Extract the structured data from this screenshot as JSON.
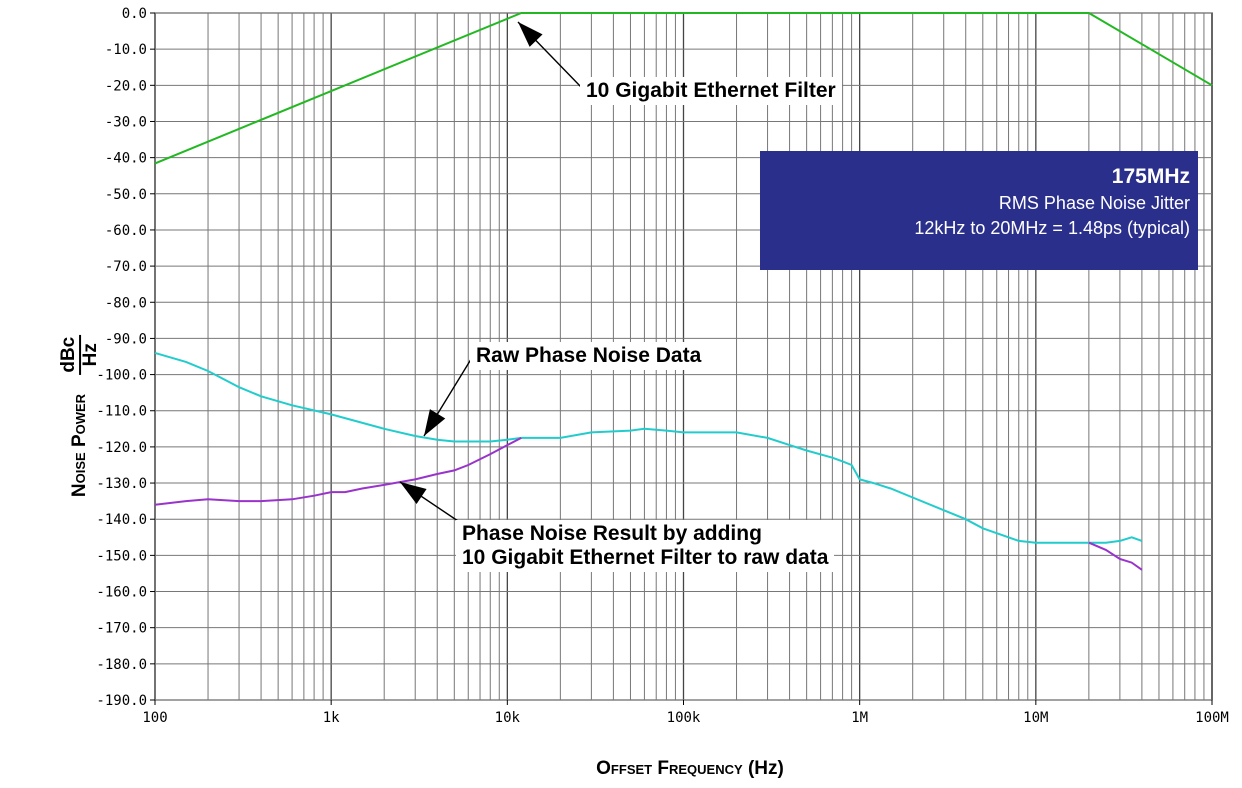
{
  "chart_data": {
    "type": "line",
    "xscale": "log",
    "xlim": [
      100,
      100000000
    ],
    "ylim": [
      -190,
      0
    ],
    "grid": true,
    "xlabel_main": "Offset Frequency",
    "xlabel_unit": "(Hz)",
    "ylabel_main": "Noise Power",
    "ylabel_num": "dBc",
    "ylabel_den": "Hz",
    "x_tick_labels": [
      "100",
      "1k",
      "10k",
      "100k",
      "1M",
      "10M",
      "100M"
    ],
    "x_tick_values": [
      100,
      1000,
      10000,
      100000,
      1000000,
      10000000,
      100000000
    ],
    "y_tick_labels": [
      "0.0",
      "-10.0",
      "-20.0",
      "-30.0",
      "-40.0",
      "-50.0",
      "-60.0",
      "-70.0",
      "-80.0",
      "-90.0",
      "-100.0",
      "-110.0",
      "-120.0",
      "-130.0",
      "-140.0",
      "-150.0",
      "-160.0",
      "-170.0",
      "-180.0",
      "-190.0"
    ],
    "y_tick_values": [
      0,
      -10,
      -20,
      -30,
      -40,
      -50,
      -60,
      -70,
      -80,
      -90,
      -100,
      -110,
      -120,
      -130,
      -140,
      -150,
      -160,
      -170,
      -180,
      -190
    ],
    "series": [
      {
        "color": "#22b822",
        "x": [
          100,
          12000,
          20000000,
          100000000
        ],
        "y": [
          -41.6,
          0,
          0,
          -20
        ]
      },
      {
        "color": "#22cccc",
        "x": [
          100,
          150,
          200,
          300,
          400,
          600,
          1000,
          2000,
          3000,
          4000,
          5000,
          6000,
          8000,
          10000,
          12000,
          20000,
          30000,
          50000,
          60000,
          80000,
          100000,
          150000,
          200000,
          300000,
          400000,
          500000,
          700000,
          800000,
          900000,
          1000000,
          1200000,
          1500000,
          2000000,
          3000000,
          4000000,
          5000000,
          7000000,
          8000000,
          10000000,
          15000000,
          20000000,
          25000000,
          30000000,
          35000000,
          40000000
        ],
        "y": [
          -94,
          -96.5,
          -99,
          -103.5,
          -106,
          -108.5,
          -111,
          -115,
          -117,
          -118,
          -118.5,
          -118.5,
          -118.5,
          -118,
          -117.5,
          -117.5,
          -116,
          -115.5,
          -115,
          -115.5,
          -116,
          -116,
          -116,
          -117.5,
          -119.5,
          -121,
          -123,
          -124,
          -125,
          -129,
          -130,
          -131.5,
          -134,
          -137.5,
          -140,
          -142.5,
          -145,
          -146,
          -146.5,
          -146.5,
          -146.5,
          -146.5,
          -146,
          -145,
          -146
        ]
      },
      {
        "color": "#9933cc",
        "x": [
          100,
          150,
          200,
          300,
          400,
          600,
          800,
          1000,
          1200,
          1500,
          2000,
          3000,
          4000,
          5000,
          6000,
          8000,
          10000,
          12000,
          20000000,
          25000000,
          30000000,
          35000000,
          40000000
        ],
        "y": [
          -136,
          -135,
          -134.5,
          -135,
          -135,
          -134.5,
          -133.5,
          -132.5,
          -132.5,
          -131.5,
          -130.5,
          -129,
          -127.5,
          -126.5,
          -125,
          -122,
          -119.5,
          -117.5,
          -146.5,
          -148.5,
          -151,
          -152,
          -154
        ]
      }
    ],
    "annotations": {
      "filter": "10 Gigabit Ethernet Filter",
      "raw": "Raw Phase Noise Data",
      "result_line1": "Phase Noise Result by adding",
      "result_line2": "10 Gigabit Ethernet Filter to raw data"
    },
    "info_box": {
      "title": "175MHz",
      "line1": "RMS Phase Noise Jitter",
      "line2": "12kHz to 20MHz = 1.48ps (typical)",
      "color": "#2b2f8c"
    }
  }
}
